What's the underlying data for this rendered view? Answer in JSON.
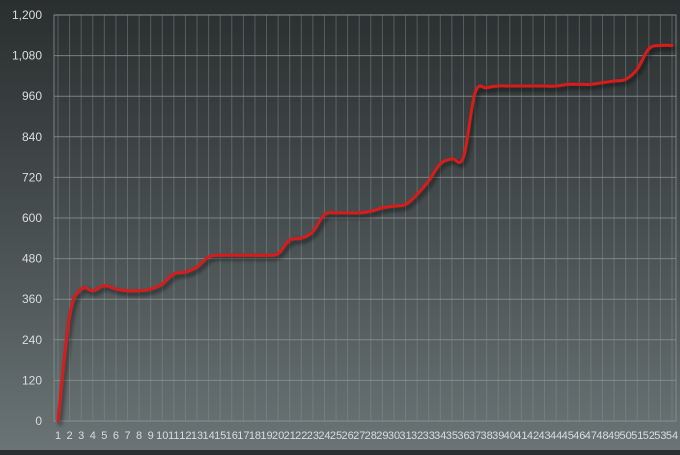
{
  "chart_data": {
    "type": "line",
    "title": "",
    "xlabel": "",
    "ylabel": "",
    "ylim": [
      0,
      1200
    ],
    "yticks": [
      "0",
      "120",
      "240",
      "360",
      "480",
      "600",
      "720",
      "840",
      "960",
      "1,080",
      "1,200"
    ],
    "grid": true,
    "legend": "none",
    "colors": {
      "line": "#d81b1b",
      "grid": "#8a9293",
      "tick_text": "#d8dcdc",
      "background_top": "#2a2e2f",
      "background_bottom": "#6a7475"
    },
    "categories": [
      "1",
      "2",
      "3",
      "4",
      "5",
      "6",
      "7",
      "8",
      "9",
      "10",
      "11",
      "12",
      "13",
      "14",
      "15",
      "16",
      "17",
      "18",
      "19",
      "20",
      "21",
      "22",
      "23",
      "24",
      "25",
      "26",
      "27",
      "28",
      "29",
      "30",
      "31",
      "32",
      "33",
      "34",
      "35",
      "36",
      "37",
      "38",
      "39",
      "40",
      "41",
      "42",
      "43",
      "44",
      "45",
      "46",
      "47",
      "48",
      "49",
      "50",
      "51",
      "52",
      "53",
      "54"
    ],
    "series": [
      {
        "name": "",
        "values": [
          0,
          310,
          390,
          385,
          400,
          390,
          385,
          385,
          390,
          405,
          435,
          440,
          455,
          485,
          490,
          490,
          490,
          490,
          490,
          495,
          535,
          540,
          560,
          610,
          615,
          615,
          615,
          620,
          630,
          635,
          640,
          670,
          710,
          760,
          775,
          780,
          970,
          985,
          990,
          990,
          990,
          990,
          990,
          990,
          995,
          995,
          995,
          1000,
          1005,
          1010,
          1040,
          1100,
          1110,
          1110
        ]
      }
    ]
  }
}
